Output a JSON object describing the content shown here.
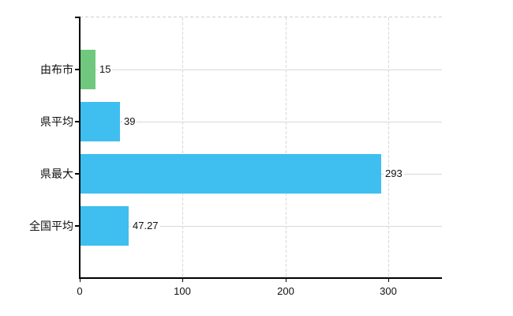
{
  "chart_data": {
    "type": "bar",
    "orientation": "horizontal",
    "title": "",
    "xlabel": "",
    "ylabel": "",
    "categories": [
      "由布市",
      "県平均",
      "県最大",
      "全国平均"
    ],
    "values": [
      15,
      39,
      293,
      47.27
    ],
    "value_labels": [
      "15",
      "39",
      "293",
      "47.27"
    ],
    "bar_colors": [
      "#70c87e",
      "#3ebff0",
      "#3ebff0",
      "#3ebff0"
    ],
    "x_ticks": [
      0,
      100,
      200,
      300
    ],
    "x_tick_labels": [
      "0",
      "100",
      "200",
      "300"
    ],
    "xlim": [
      0,
      352
    ],
    "grid": true,
    "legend": false,
    "colors": {
      "bar_blue": "#3ebff0",
      "bar_green": "#70c87e",
      "grid": "#d9d9d9",
      "axis": "#000000",
      "text": "#111111",
      "background": "#ffffff"
    }
  }
}
